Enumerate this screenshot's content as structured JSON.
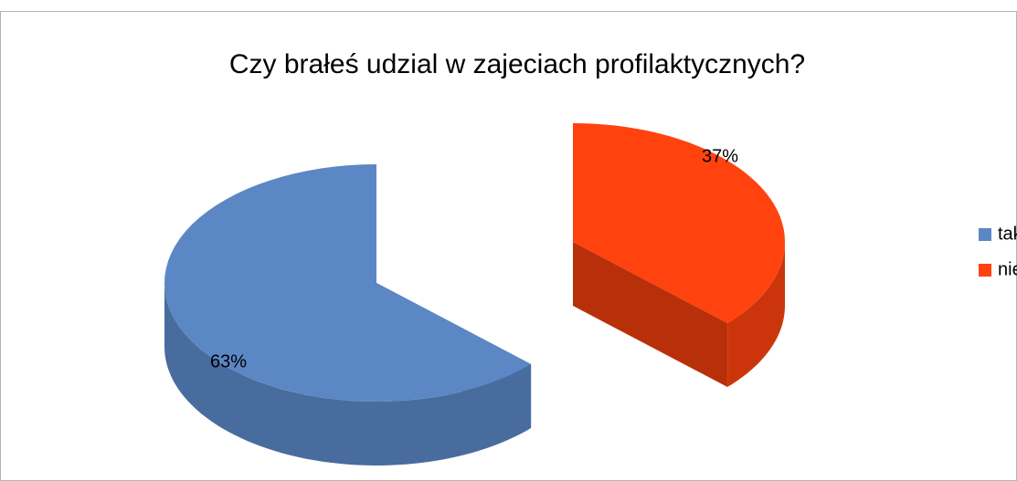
{
  "chart_data": {
    "type": "pie",
    "title": "Czy brałeś udzial w zajeciach profilaktycznych?",
    "categories": [
      "tak",
      "nie"
    ],
    "values": [
      63,
      37
    ],
    "value_labels": [
      "63%",
      "37%"
    ],
    "colors": [
      "#5b87c5",
      "#ff420e"
    ],
    "legend": "right",
    "three_d": true,
    "exploded": true
  }
}
